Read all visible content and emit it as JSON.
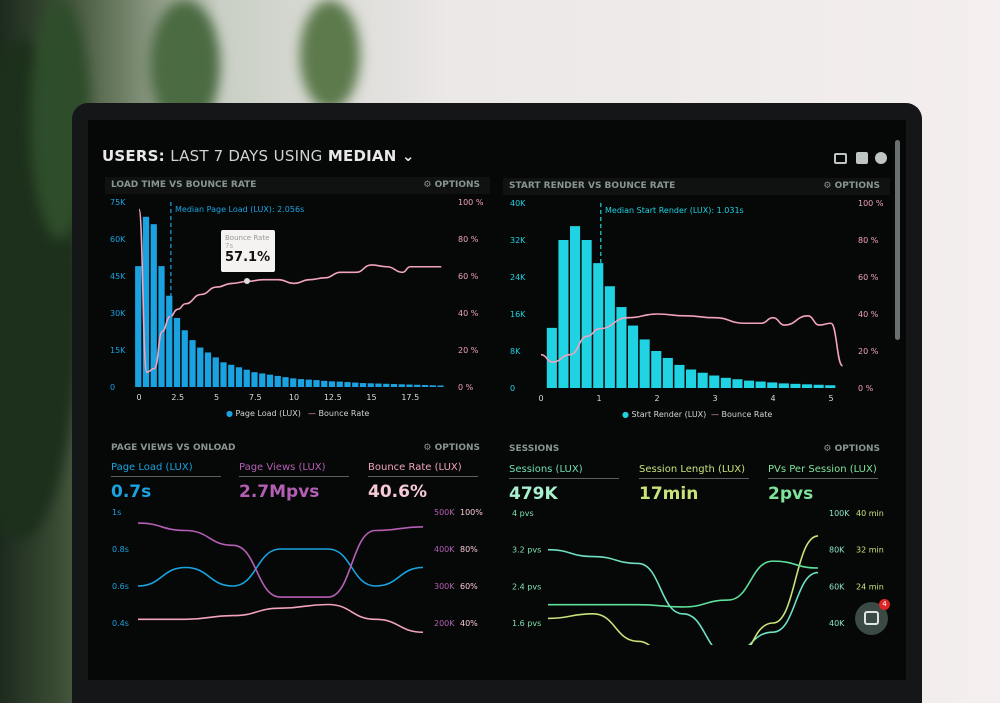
{
  "header": {
    "title_bold_1": "USERS:",
    "title_sub": "LAST 7 DAYS",
    "title_using": "USING",
    "title_bold_2": "MEDIAN",
    "icons": [
      "monitor-icon",
      "share-icon",
      "help-icon"
    ]
  },
  "options_label": "OPTIONS",
  "colors": {
    "blue": "#1aa3e0",
    "cyan": "#1fd3e3",
    "pink": "#f2a3bd",
    "purple": "#b45fb5",
    "mint": "#6fe0b4",
    "lime": "#c7e37a"
  },
  "panel1": {
    "title": "LOAD TIME VS BOUNCE RATE",
    "median": "Median Page Load (LUX): 2.056s",
    "tooltip": {
      "label": "Bounce Rate",
      "sub": "7s",
      "value": "57.1%"
    },
    "legend": [
      "Page Load (LUX)",
      "Bounce Rate"
    ]
  },
  "panel2": {
    "title": "START RENDER VS BOUNCE RATE",
    "median": "Median Start Render (LUX): 1.031s",
    "legend": [
      "Start Render (LUX)",
      "Bounce Rate"
    ]
  },
  "panel3": {
    "title": "PAGE VIEWS VS ONLOAD",
    "metrics": [
      {
        "label": "Page Load (LUX)",
        "value": "0.7s"
      },
      {
        "label": "Page Views (LUX)",
        "value": "2.7Mpvs"
      },
      {
        "label": "Bounce Rate (LUX)",
        "value": "40.6%"
      }
    ]
  },
  "panel4": {
    "title": "SESSIONS",
    "metrics": [
      {
        "label": "Sessions (LUX)",
        "value": "479K"
      },
      {
        "label": "Session Length (LUX)",
        "value": "17min"
      },
      {
        "label": "PVs Per Session (LUX)",
        "value": "2pvs"
      }
    ]
  },
  "chat": {
    "badge": "4"
  },
  "chart_data": [
    {
      "type": "bar",
      "title": "LOAD TIME VS BOUNCE RATE",
      "x_ticks": [
        "0",
        "2.5",
        "5",
        "7.5",
        "10",
        "12.5",
        "15",
        "17.5"
      ],
      "y_ticks": [
        "0",
        "15K",
        "30K",
        "45K",
        "60K",
        "75K"
      ],
      "y2_ticks": [
        "0 %",
        "20 %",
        "40 %",
        "60 %",
        "80 %",
        "100 %"
      ],
      "ylim": [
        0,
        75000
      ],
      "y2lim": [
        0,
        100
      ],
      "bar_x_start": 0,
      "bar_x_step": 0.5,
      "series": [
        {
          "name": "Page Load (LUX)",
          "values": [
            49000,
            69000,
            66000,
            49000,
            37000,
            28000,
            23000,
            19000,
            16000,
            14000,
            12000,
            10000,
            9000,
            8000,
            7000,
            6000,
            5500,
            5000,
            4500,
            4000,
            3500,
            3200,
            3000,
            2800,
            2500,
            2300,
            2200,
            2000,
            1800,
            1600,
            1500,
            1400,
            1300,
            1200,
            1100,
            1000,
            900,
            800,
            700,
            600
          ]
        },
        {
          "name": "Bounce Rate",
          "type": "line",
          "points": [
            [
              0,
              96
            ],
            [
              0.5,
              8
            ],
            [
              1,
              10
            ],
            [
              1.5,
              30
            ],
            [
              2,
              38
            ],
            [
              2.5,
              42
            ],
            [
              3,
              45
            ],
            [
              4,
              50
            ],
            [
              5,
              54
            ],
            [
              6,
              56
            ],
            [
              7,
              57.1
            ],
            [
              8,
              58
            ],
            [
              9,
              58
            ],
            [
              10,
              56
            ],
            [
              11,
              58
            ],
            [
              12,
              59
            ],
            [
              13,
              62
            ],
            [
              14,
              62
            ],
            [
              15,
              66
            ],
            [
              16,
              65
            ],
            [
              17,
              62
            ],
            [
              17.5,
              65
            ],
            [
              19,
              65
            ],
            [
              19.5,
              65
            ]
          ]
        }
      ]
    },
    {
      "type": "bar",
      "title": "START RENDER VS BOUNCE RATE",
      "x_ticks": [
        "0",
        "1",
        "2",
        "3",
        "4",
        "5"
      ],
      "y_ticks": [
        "0",
        "8K",
        "16K",
        "24K",
        "32K",
        "40K"
      ],
      "y2_ticks": [
        "0 %",
        "20 %",
        "40 %",
        "60 %",
        "80 %",
        "100 %"
      ],
      "ylim": [
        0,
        40000
      ],
      "y2lim": [
        0,
        100
      ],
      "bar_x_start": 0.2,
      "bar_x_step": 0.2,
      "series": [
        {
          "name": "Start Render (LUX)",
          "values": [
            13000,
            32000,
            35000,
            32000,
            27000,
            22000,
            17500,
            13500,
            10500,
            8000,
            6500,
            5000,
            4000,
            3300,
            2700,
            2200,
            1900,
            1600,
            1400,
            1200,
            1000,
            900,
            800,
            700,
            600
          ]
        },
        {
          "name": "Bounce Rate",
          "type": "line",
          "points": [
            [
              0,
              18
            ],
            [
              0.2,
              14
            ],
            [
              0.5,
              18
            ],
            [
              0.8,
              28
            ],
            [
              1,
              32
            ],
            [
              1.5,
              38
            ],
            [
              2,
              40
            ],
            [
              2.5,
              39
            ],
            [
              3,
              38
            ],
            [
              3.5,
              35
            ],
            [
              3.8,
              35
            ],
            [
              4,
              38
            ],
            [
              4.2,
              34
            ],
            [
              4.6,
              39
            ],
            [
              4.8,
              34
            ],
            [
              5,
              35
            ],
            [
              5.2,
              12
            ]
          ]
        }
      ]
    },
    {
      "type": "line",
      "title": "PAGE VIEWS VS ONLOAD",
      "y_ticks": [
        "1s",
        "0.8s",
        "0.6s",
        "0.4s"
      ],
      "y2_ticks": [
        "500K",
        "400K",
        "300K",
        "200K"
      ],
      "y3_ticks": [
        "100%",
        "80%",
        "60%",
        "40%"
      ],
      "series": [
        {
          "name": "Page Load (LUX)",
          "values": [
            0.6,
            0.7,
            0.6,
            0.8,
            0.8,
            0.6,
            0.7
          ]
        },
        {
          "name": "Page Views (LUX)",
          "values": [
            470000,
            450000,
            410000,
            270000,
            270000,
            450000,
            460000
          ]
        },
        {
          "name": "Bounce Rate (LUX)",
          "values": [
            42,
            42,
            44,
            48,
            50,
            42,
            35
          ]
        }
      ]
    },
    {
      "type": "line",
      "title": "SESSIONS",
      "y_ticks": [
        "4 pvs",
        "3.2 pvs",
        "2.4 pvs",
        "1.6 pvs"
      ],
      "y2_ticks": [
        "100K",
        "80K",
        "60K",
        "40K"
      ],
      "y3_ticks": [
        "40 min",
        "32 min",
        "24 min"
      ],
      "series": [
        {
          "name": "Sessions (LUX)",
          "values": [
            3.2,
            3.05,
            2.9,
            1.8,
            0.9,
            1.4,
            2.7
          ]
        },
        {
          "name": "Session Length (LUX)",
          "values": [
            1.7,
            1.8,
            1.2,
            0.4,
            0.6,
            1.6,
            3.5
          ]
        },
        {
          "name": "PVs Per Session (LUX)",
          "values": [
            2.0,
            2.0,
            2.0,
            1.95,
            2.1,
            2.95,
            2.8
          ]
        }
      ]
    }
  ]
}
